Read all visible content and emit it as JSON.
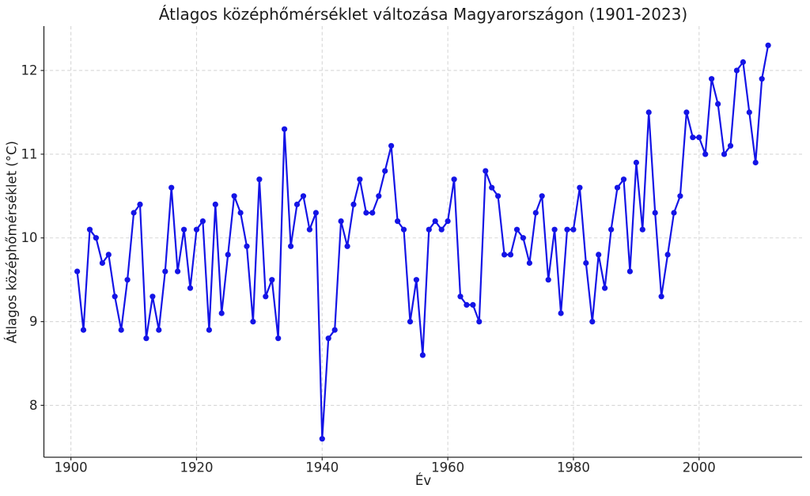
{
  "chart_data": {
    "type": "line",
    "title": "Átlagos középhőmérséklet változása Magyarországon (1901-2023)",
    "xlabel": "Év",
    "ylabel": "Átlagos középhőmérséklet (°C)",
    "legend": null,
    "grid": true,
    "grid_style": "dashed",
    "line_color": "#1414e6",
    "marker": "circle",
    "xlim": [
      1895.7,
      2016.4
    ],
    "ylim": [
      7.38,
      12.53
    ],
    "x_ticks": [
      1900,
      1920,
      1940,
      1960,
      1980,
      2000
    ],
    "y_ticks": [
      8,
      9,
      10,
      11,
      12
    ],
    "x": [
      1901,
      1902,
      1903,
      1904,
      1905,
      1906,
      1907,
      1908,
      1909,
      1910,
      1911,
      1912,
      1913,
      1914,
      1915,
      1916,
      1917,
      1918,
      1919,
      1920,
      1921,
      1922,
      1923,
      1924,
      1925,
      1926,
      1927,
      1928,
      1929,
      1930,
      1931,
      1932,
      1933,
      1934,
      1935,
      1936,
      1937,
      1938,
      1939,
      1940,
      1941,
      1942,
      1943,
      1944,
      1945,
      1946,
      1947,
      1948,
      1949,
      1950,
      1951,
      1952,
      1953,
      1954,
      1955,
      1956,
      1957,
      1958,
      1959,
      1960,
      1961,
      1962,
      1963,
      1964,
      1965,
      1966,
      1967,
      1968,
      1969,
      1970,
      1971,
      1972,
      1973,
      1974,
      1975,
      1976,
      1977,
      1978,
      1979,
      1980,
      1981,
      1982,
      1983,
      1984,
      1985,
      1986,
      1987,
      1988,
      1989,
      1990,
      1991,
      1992,
      1993,
      1994,
      1995,
      1996,
      1997,
      1998,
      1999,
      2000,
      2001,
      2002,
      2003,
      2004,
      2005,
      2006,
      2007,
      2008,
      2009,
      2010,
      2011
    ],
    "values": [
      9.6,
      8.9,
      10.1,
      10.0,
      9.7,
      9.8,
      9.3,
      8.9,
      9.5,
      10.3,
      10.4,
      8.8,
      9.3,
      8.9,
      9.6,
      10.6,
      9.6,
      10.1,
      9.4,
      10.1,
      10.2,
      8.9,
      10.4,
      9.1,
      9.8,
      10.5,
      10.3,
      9.9,
      9.0,
      10.7,
      9.3,
      9.5,
      8.8,
      11.3,
      9.9,
      10.4,
      10.5,
      10.1,
      10.3,
      7.6,
      8.8,
      8.9,
      10.2,
      9.9,
      10.4,
      10.7,
      10.3,
      10.3,
      10.5,
      10.8,
      11.1,
      10.2,
      10.1,
      9.0,
      9.5,
      8.6,
      10.1,
      10.2,
      10.1,
      10.2,
      10.7,
      9.3,
      9.2,
      9.2,
      9.0,
      10.8,
      10.6,
      10.5,
      9.8,
      9.8,
      10.1,
      10.0,
      9.7,
      10.3,
      10.5,
      9.5,
      10.1,
      9.1,
      10.1,
      10.1,
      10.6,
      9.7,
      9.0,
      9.8,
      9.4,
      10.1,
      10.6,
      10.7,
      9.6,
      10.9,
      10.1,
      11.5,
      10.3,
      9.3,
      9.8,
      10.3,
      10.5,
      11.5,
      11.2,
      11.2,
      11.0,
      11.9,
      11.6,
      11.0,
      11.1,
      12.0,
      12.1,
      11.5,
      10.9,
      11.9,
      12.3
    ]
  }
}
